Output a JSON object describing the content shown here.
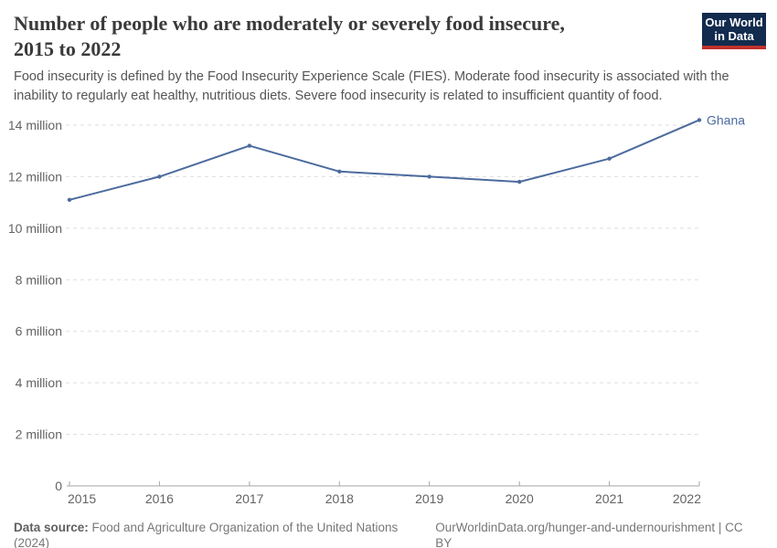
{
  "header": {
    "title_lines": [
      "Number of people who are moderately or severely food insecure,",
      "2015 to 2022"
    ],
    "subtitle_lines": [
      "Food insecurity is defined by the Food Insecurity Experience Scale (FIES). Moderate food insecurity is associated with the",
      "inability to regularly eat healthy, nutritious diets. Severe food insecurity is related to insufficient quantity of food."
    ],
    "logo": {
      "line1": "Our World",
      "line2": "in Data"
    }
  },
  "chart_data": {
    "type": "line",
    "title": "Number of people who are moderately or severely food insecure, 2015 to 2022",
    "unit": "million people",
    "x": [
      2015,
      2016,
      2017,
      2018,
      2019,
      2020,
      2021,
      2022
    ],
    "series": [
      {
        "name": "Ghana",
        "color": "#4C6B9E",
        "values_million": [
          11.1,
          12.0,
          13.2,
          12.2,
          12.0,
          11.8,
          12.7,
          14.2
        ]
      }
    ],
    "y_ticks": [
      {
        "value": 0,
        "label": "0"
      },
      {
        "value": 2,
        "label": "2 million"
      },
      {
        "value": 4,
        "label": "4 million"
      },
      {
        "value": 6,
        "label": "6 million"
      },
      {
        "value": 8,
        "label": "8 million"
      },
      {
        "value": 10,
        "label": "10 million"
      },
      {
        "value": 12,
        "label": "12 million"
      },
      {
        "value": 14,
        "label": "14 million"
      }
    ],
    "ylim_million": [
      0,
      14
    ],
    "grid": "horizontal dashed",
    "legend_position": "end-of-line label"
  },
  "footer": {
    "source_label": "Data source:",
    "source_text": " Food and Agriculture Organization of the United Nations (2024)",
    "link_text": "OurWorldinData.org/hunger-and-undernourishment | CC BY"
  },
  "colors": {
    "line": "#4C6B9E",
    "grid": "#DDDDDD",
    "axis": "#A6A6A6",
    "tick_label": "#636363",
    "title": "#3A3A3A",
    "subtitle": "#555555",
    "footer": "#777777",
    "logo_bg": "#122B4E",
    "logo_bar": "#C0312B"
  }
}
